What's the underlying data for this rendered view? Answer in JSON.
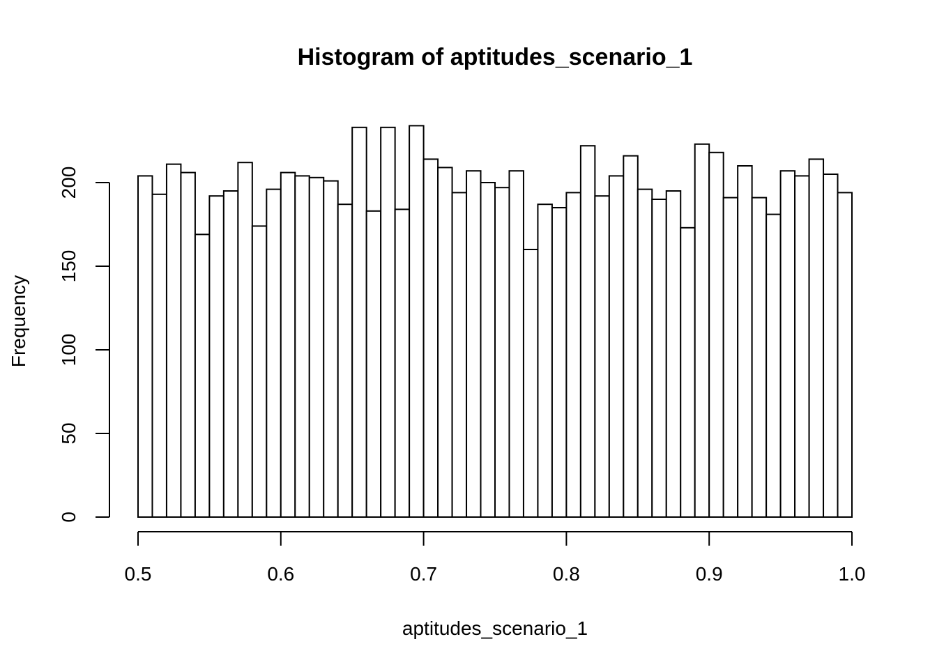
{
  "chart_data": {
    "type": "bar",
    "title": "Histogram of aptitudes_scenario_1",
    "xlabel": "aptitudes_scenario_1",
    "ylabel": "Frequency",
    "xlim": [
      0.5,
      1.0
    ],
    "ylim": [
      0,
      240
    ],
    "x_ticks": [
      {
        "value": 0.5,
        "label": "0.5"
      },
      {
        "value": 0.6,
        "label": "0.6"
      },
      {
        "value": 0.7,
        "label": "0.7"
      },
      {
        "value": 0.8,
        "label": "0.8"
      },
      {
        "value": 0.9,
        "label": "0.9"
      },
      {
        "value": 1.0,
        "label": "1.0"
      }
    ],
    "y_ticks": [
      {
        "value": 0,
        "label": "0"
      },
      {
        "value": 50,
        "label": "50"
      },
      {
        "value": 100,
        "label": "100"
      },
      {
        "value": 150,
        "label": "150"
      },
      {
        "value": 200,
        "label": "200"
      }
    ],
    "bin_width": 0.01,
    "bin_start": 0.5,
    "values": [
      204,
      193,
      211,
      206,
      169,
      192,
      195,
      212,
      174,
      196,
      206,
      204,
      203,
      201,
      187,
      233,
      183,
      233,
      184,
      234,
      214,
      209,
      194,
      207,
      200,
      197,
      207,
      160,
      187,
      185,
      194,
      222,
      192,
      204,
      216,
      196,
      190,
      195,
      173,
      223,
      218,
      191,
      210,
      191,
      181,
      207,
      204,
      214,
      205,
      194
    ],
    "grid": false,
    "legend": "none"
  }
}
